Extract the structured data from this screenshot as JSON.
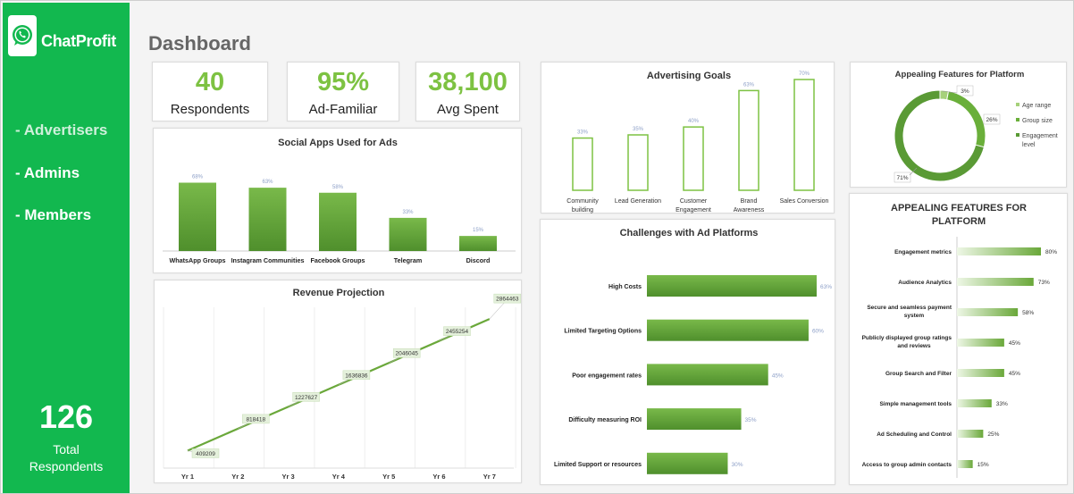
{
  "brand": "ChatProfit",
  "nav": [
    "- Advertisers",
    "- Admins",
    "- Members"
  ],
  "total": {
    "value": "126",
    "label_line1": "Total",
    "label_line2": "Respondents"
  },
  "page_title": "Dashboard",
  "kpis": [
    {
      "value": "40",
      "label": "Respondents"
    },
    {
      "value": "95%",
      "label": "Ad-Familiar"
    },
    {
      "value": "38,100",
      "label": "Avg Spent"
    }
  ],
  "colors": {
    "sidebar": "#12b84f",
    "accent": "#7dc242",
    "bar": "#6aa83a",
    "donut_dark": "#5a9a35",
    "donut_light": "#a6d17a"
  },
  "chart_data": [
    {
      "id": "social",
      "type": "bar",
      "title": "Social Apps Used for Ads",
      "categories": [
        "WhatsApp Groups",
        "Instagram Communities",
        "Facebook Groups",
        "Telegram",
        "Discord"
      ],
      "values": [
        68,
        63,
        58,
        33,
        15
      ],
      "labels": [
        "68%",
        "63%",
        "58%",
        "33%",
        "15%"
      ]
    },
    {
      "id": "goals",
      "type": "bar",
      "title": "Advertising Goals",
      "categories": [
        [
          "Community",
          "building"
        ],
        [
          "Lead Generation"
        ],
        [
          "Customer",
          "Engagement"
        ],
        [
          "Brand",
          "Awareness"
        ],
        [
          "Sales Conversion"
        ]
      ],
      "values": [
        33,
        35,
        40,
        63,
        70
      ],
      "labels": [
        "33%",
        "35%",
        "40%",
        "63%",
        "70%"
      ]
    },
    {
      "id": "donut",
      "type": "pie",
      "title": "Appealing Features for Platform",
      "slices": [
        {
          "name": "Age range",
          "value": 3,
          "label": "3%"
        },
        {
          "name": "Group size",
          "value": 26,
          "label": "26%"
        },
        {
          "name": "Engagement level",
          "value": 71,
          "label": "71%"
        }
      ],
      "legend": "right"
    },
    {
      "id": "revenue",
      "type": "line",
      "title": "Revenue Projection",
      "categories": [
        "Yr 1",
        "Yr 2",
        "Yr 3",
        "Yr 4",
        "Yr 5",
        "Yr 6",
        "Yr 7"
      ],
      "values": [
        409209,
        818418,
        1227627,
        1636836,
        2046045,
        2455254,
        2864463
      ],
      "grid": "vertical"
    },
    {
      "id": "challenges",
      "type": "bar",
      "orientation": "horizontal",
      "title": "Challenges with Ad Platforms",
      "categories": [
        "High Costs",
        "Limited Targeting Options",
        "Poor engagement rates",
        "Difficulty measuring ROI",
        "Limited Support or resources"
      ],
      "values": [
        63,
        60,
        45,
        35,
        30
      ],
      "labels": [
        "63%",
        "60%",
        "45%",
        "35%",
        "30%"
      ]
    },
    {
      "id": "features",
      "type": "bar",
      "orientation": "horizontal",
      "title": [
        "APPEALING FEATURES FOR",
        "PLATFORM"
      ],
      "categories": [
        [
          "Engagement metrics"
        ],
        [
          "Audience Analytics"
        ],
        [
          "Secure and seamless payment",
          "system"
        ],
        [
          "Publicly displayed group ratings",
          "and reviews"
        ],
        [
          "Group Search and Filter"
        ],
        [
          "Simple management tools"
        ],
        [
          "Ad Scheduling and Control"
        ],
        [
          "Access to group admin contacts"
        ]
      ],
      "values": [
        80,
        73,
        58,
        45,
        45,
        33,
        25,
        15
      ],
      "labels": [
        "80%",
        "73%",
        "58%",
        "45%",
        "45%",
        "33%",
        "25%",
        "15%"
      ]
    }
  ]
}
